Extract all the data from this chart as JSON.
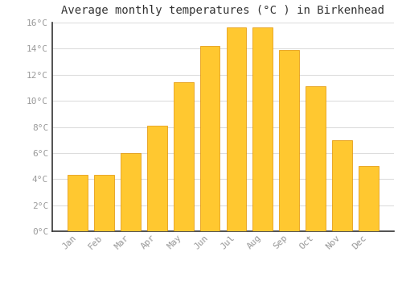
{
  "title": "Average monthly temperatures (°C ) in Birkenhead",
  "months": [
    "Jan",
    "Feb",
    "Mar",
    "Apr",
    "May",
    "Jun",
    "Jul",
    "Aug",
    "Sep",
    "Oct",
    "Nov",
    "Dec"
  ],
  "values": [
    4.3,
    4.3,
    6.0,
    8.1,
    11.4,
    14.2,
    15.6,
    15.6,
    13.9,
    11.1,
    7.0,
    5.0
  ],
  "bar_color_top": "#FFC830",
  "bar_color_bottom": "#F5A800",
  "bar_edge_color": "#E09000",
  "background_color": "#FFFFFF",
  "plot_bg_color": "#FFFFFF",
  "grid_color": "#DDDDDD",
  "title_fontsize": 10,
  "tick_label_color": "#999999",
  "ylim": [
    0,
    16
  ],
  "yticks": [
    0,
    2,
    4,
    6,
    8,
    10,
    12,
    14,
    16
  ]
}
